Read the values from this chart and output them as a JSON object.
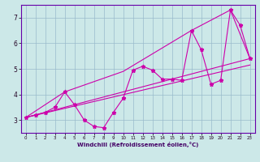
{
  "xlabel": "Windchill (Refroidissement éolien,°C)",
  "bg_color": "#cce8e8",
  "plot_bg": "#cce8e8",
  "grid_color": "#99bbcc",
  "line_color": "#cc00aa",
  "spine_color": "#6600aa",
  "xlim": [
    -0.5,
    23.5
  ],
  "ylim": [
    2.5,
    7.5
  ],
  "yticks": [
    3,
    4,
    5,
    6,
    7
  ],
  "xticks": [
    0,
    1,
    2,
    3,
    4,
    5,
    6,
    7,
    8,
    9,
    10,
    11,
    12,
    13,
    14,
    15,
    16,
    17,
    18,
    19,
    20,
    21,
    22,
    23
  ],
  "series": {
    "hourly": {
      "x": [
        0,
        1,
        2,
        3,
        4,
        5,
        6,
        7,
        8,
        9,
        10,
        11,
        12,
        13,
        14,
        15,
        16,
        17,
        18,
        19,
        20,
        21,
        22,
        23
      ],
      "y": [
        3.1,
        3.2,
        3.3,
        3.5,
        4.1,
        3.6,
        3.0,
        2.75,
        2.7,
        3.3,
        3.85,
        4.95,
        5.1,
        4.95,
        4.6,
        4.6,
        4.55,
        6.5,
        5.75,
        4.4,
        4.55,
        7.3,
        6.7,
        5.4
      ]
    },
    "line1": {
      "x": [
        0,
        23
      ],
      "y": [
        3.1,
        5.4
      ]
    },
    "line2": {
      "x": [
        0,
        23
      ],
      "y": [
        3.1,
        5.15
      ]
    },
    "line3": {
      "x": [
        0,
        4,
        10,
        17,
        21,
        23
      ],
      "y": [
        3.1,
        4.1,
        4.9,
        6.5,
        7.3,
        5.4
      ]
    }
  }
}
